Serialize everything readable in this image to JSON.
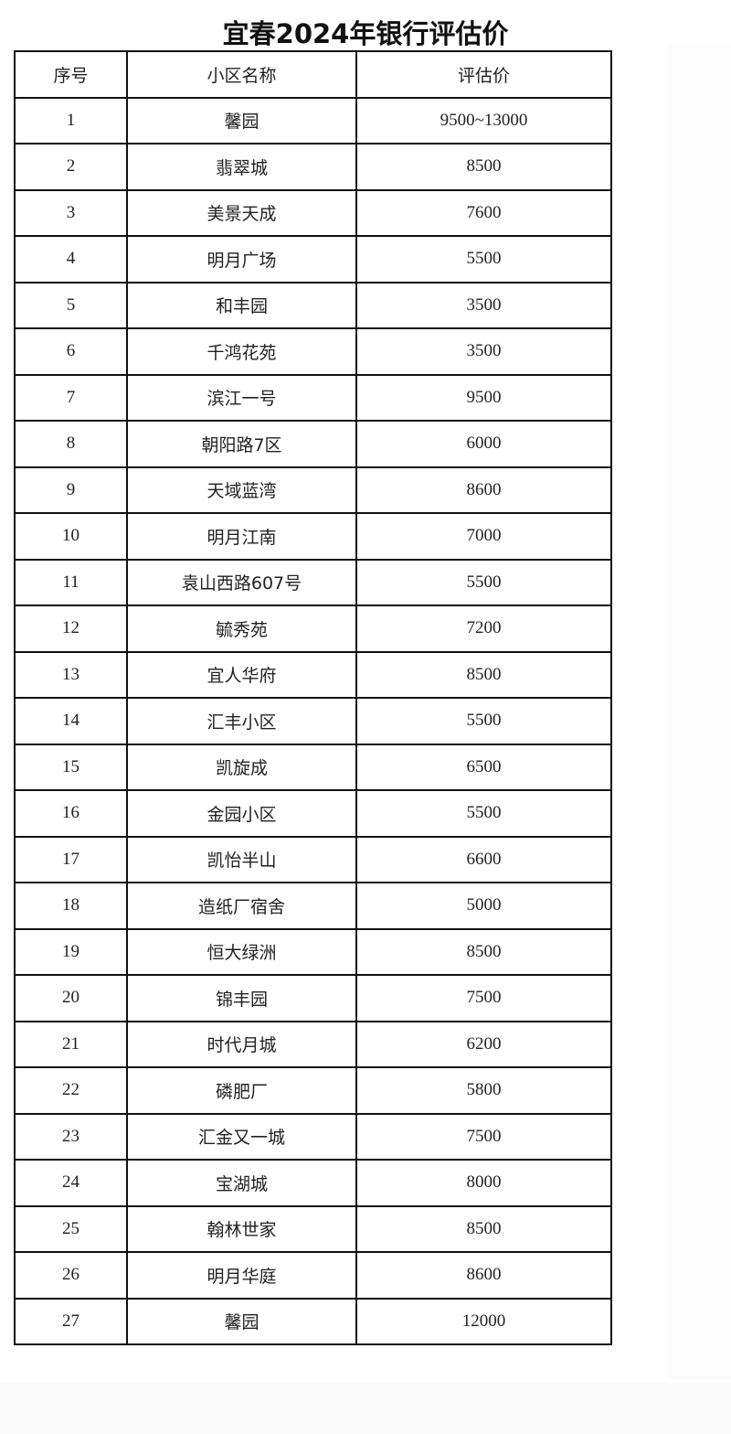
{
  "title": "宜春2024年银行评估价",
  "table": {
    "headers": [
      "序号",
      "小区名称",
      "评估价"
    ],
    "rows": [
      [
        "1",
        "馨园",
        "9500~13000"
      ],
      [
        "2",
        "翡翠城",
        "8500"
      ],
      [
        "3",
        "美景天成",
        "7600"
      ],
      [
        "4",
        "明月广场",
        "5500"
      ],
      [
        "5",
        "和丰园",
        "3500"
      ],
      [
        "6",
        "千鸿花苑",
        "3500"
      ],
      [
        "7",
        "滨江一号",
        "9500"
      ],
      [
        "8",
        "朝阳路7区",
        "6000"
      ],
      [
        "9",
        "天域蓝湾",
        "8600"
      ],
      [
        "10",
        "明月江南",
        "7000"
      ],
      [
        "11",
        "袁山西路607号",
        "5500"
      ],
      [
        "12",
        "毓秀苑",
        "7200"
      ],
      [
        "13",
        "宜人华府",
        "8500"
      ],
      [
        "14",
        "汇丰小区",
        "5500"
      ],
      [
        "15",
        "凯旋成",
        "6500"
      ],
      [
        "16",
        "金园小区",
        "5500"
      ],
      [
        "17",
        "凯怡半山",
        "6600"
      ],
      [
        "18",
        "造纸厂宿舍",
        "5000"
      ],
      [
        "19",
        "恒大绿洲",
        "8500"
      ],
      [
        "20",
        "锦丰园",
        "7500"
      ],
      [
        "21",
        "时代月城",
        "6200"
      ],
      [
        "22",
        "磷肥厂",
        "5800"
      ],
      [
        "23",
        "汇金又一城",
        "7500"
      ],
      [
        "24",
        "宝湖城",
        "8000"
      ],
      [
        "25",
        "翰林世家",
        "8500"
      ],
      [
        "26",
        "明月华庭",
        "8600"
      ],
      [
        "27",
        "馨园",
        "12000"
      ]
    ]
  }
}
